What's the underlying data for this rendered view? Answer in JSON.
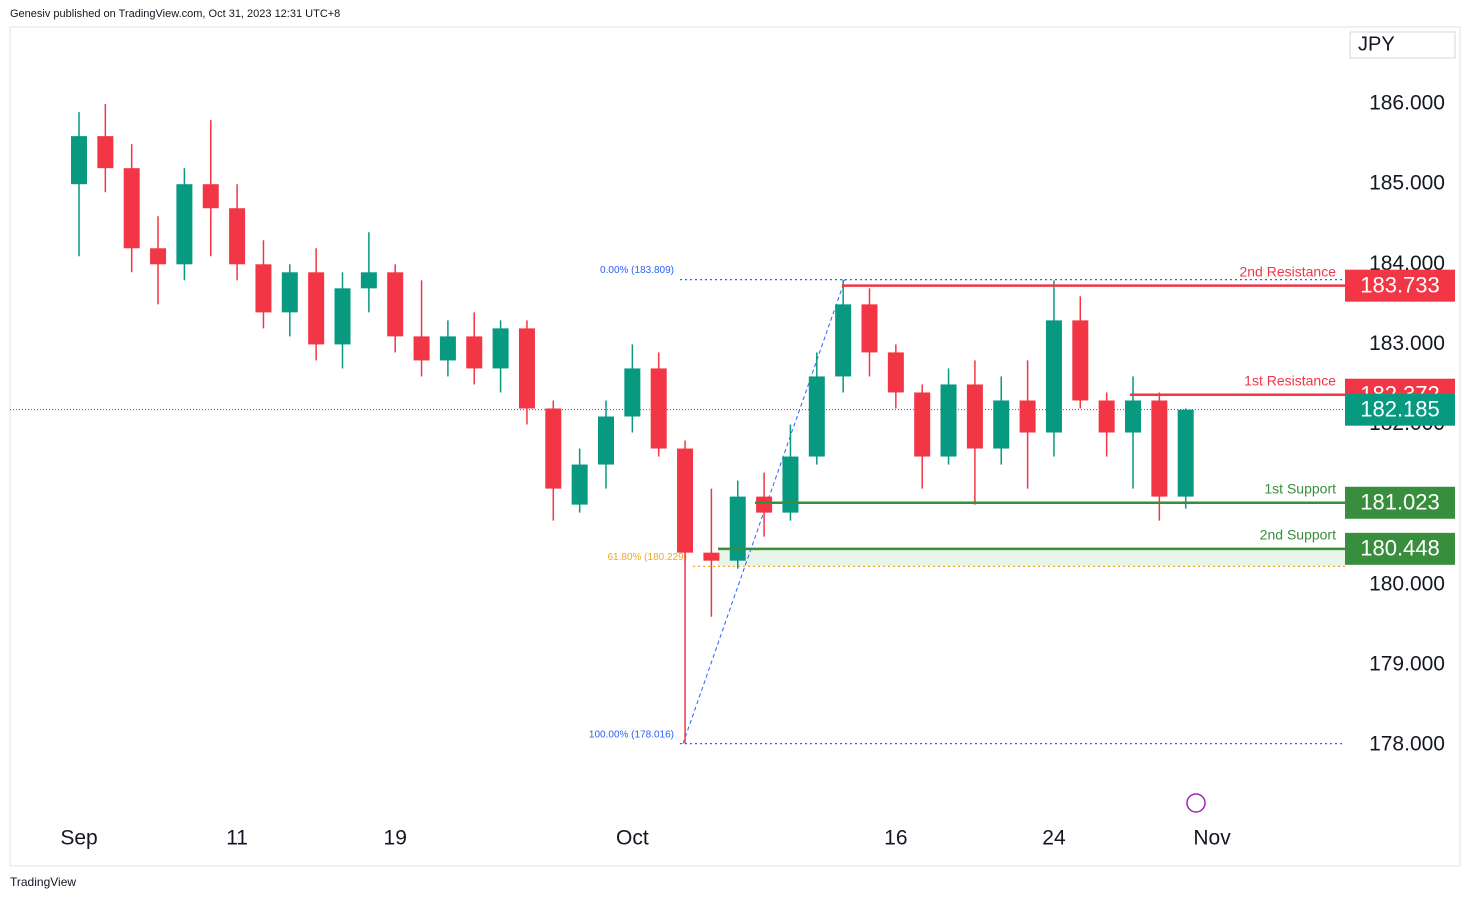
{
  "header": "Genesiv published on TradingView.com, Oct 31, 2023 12:31 UTC+8",
  "footer": "TradingView",
  "chart_data": {
    "type": "candlestick",
    "currency": "JPY",
    "up_color": "#089981",
    "down_color": "#f23645",
    "xticks": [
      {
        "value": 0,
        "label": "Sep"
      },
      {
        "value": 6,
        "label": "11"
      },
      {
        "value": 12,
        "label": "19"
      },
      {
        "value": 21,
        "label": "Oct"
      },
      {
        "value": 31,
        "label": "16"
      },
      {
        "value": 37,
        "label": "24"
      },
      {
        "value": 43,
        "label": "Nov"
      }
    ],
    "open": [
      185.0,
      185.6,
      185.2,
      184.2,
      184.0,
      185.0,
      184.7,
      184.0,
      183.4,
      183.9,
      183.0,
      183.7,
      183.9,
      183.1,
      182.8,
      183.1,
      182.7,
      183.2,
      182.2,
      181.0,
      181.5,
      182.1,
      182.7,
      181.7,
      180.4,
      180.3,
      181.1,
      180.9,
      181.6,
      182.6,
      183.5,
      182.9,
      182.4,
      181.6,
      182.5,
      181.7,
      182.3,
      181.9,
      183.3,
      182.3,
      181.9,
      182.3,
      181.1
    ],
    "high": [
      185.9,
      186.0,
      185.5,
      184.6,
      185.2,
      185.8,
      185.0,
      184.3,
      184.0,
      184.2,
      183.9,
      184.4,
      184.0,
      183.8,
      183.3,
      183.4,
      183.3,
      183.3,
      182.3,
      181.7,
      182.3,
      183.0,
      182.9,
      181.8,
      181.2,
      181.3,
      181.4,
      182.0,
      182.9,
      183.809,
      183.7,
      183.0,
      182.5,
      182.7,
      182.8,
      182.6,
      182.8,
      183.8,
      183.6,
      182.4,
      182.6,
      182.4,
      182.2
    ],
    "low": [
      184.1,
      184.9,
      183.9,
      183.5,
      183.8,
      184.1,
      183.8,
      183.2,
      183.1,
      182.8,
      182.7,
      183.4,
      182.9,
      182.6,
      182.6,
      182.5,
      182.4,
      182.0,
      180.8,
      180.9,
      181.2,
      181.9,
      181.6,
      178.016,
      179.6,
      180.2,
      180.6,
      180.8,
      181.5,
      182.4,
      182.6,
      182.2,
      181.2,
      181.5,
      181.0,
      181.5,
      181.2,
      181.6,
      182.2,
      181.6,
      181.2,
      180.8,
      180.95
    ],
    "close": [
      185.6,
      185.2,
      184.2,
      184.0,
      185.0,
      184.7,
      184.0,
      183.4,
      183.9,
      183.0,
      183.7,
      183.9,
      183.1,
      182.8,
      183.1,
      182.7,
      183.2,
      182.2,
      181.2,
      181.5,
      182.1,
      182.7,
      181.7,
      180.4,
      180.3,
      181.1,
      180.9,
      181.6,
      182.6,
      183.5,
      182.9,
      182.4,
      181.6,
      182.5,
      181.7,
      182.3,
      181.9,
      183.3,
      182.3,
      181.9,
      182.3,
      181.1,
      182.185
    ],
    "ylim": [
      177.2,
      186.9
    ],
    "yticks": [
      {
        "value": 178,
        "label": "178.000"
      },
      {
        "value": 179,
        "label": "179.000"
      },
      {
        "value": 180,
        "label": "180.000"
      },
      {
        "value": 181,
        "label": "181.000"
      },
      {
        "value": 182,
        "label": "182.000"
      },
      {
        "value": 183,
        "label": "183.000"
      },
      {
        "value": 184,
        "label": "184.000"
      },
      {
        "value": 185,
        "label": "185.000"
      },
      {
        "value": 186,
        "label": "186.000"
      }
    ],
    "levels": [
      {
        "name": "2nd Resistance",
        "value": 183.733,
        "color": "#f23645"
      },
      {
        "name": "1st Resistance",
        "value": 182.372,
        "color": "#f23645"
      },
      {
        "name": "1st Support",
        "value": 181.023,
        "color": "#388e3c"
      },
      {
        "name": "2nd Support",
        "value": 180.448,
        "color": "#388e3c"
      }
    ],
    "last_price": 182.185,
    "fib_levels": [
      {
        "label": "0.00% (183.809)",
        "value": 183.809,
        "color": "#2962ff"
      },
      {
        "label": "61.80% (180.229)",
        "value": 180.229,
        "color": "#f5a623"
      },
      {
        "label": "100.00% (178.016)",
        "value": 178.016,
        "color": "#2962ff"
      }
    ]
  }
}
